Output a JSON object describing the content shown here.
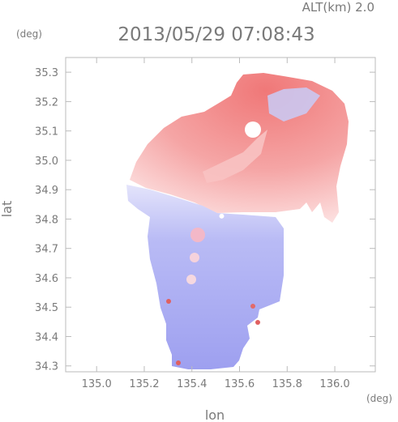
{
  "chart_data": {
    "type": "heatmap",
    "title": "2013/05/29 07:08:43",
    "subtitle": "ALT(km) 2.0",
    "xlabel": "lon",
    "ylabel": "lat",
    "xunit": "(deg)",
    "yunit": "(deg)",
    "xlim": [
      134.87,
      136.17
    ],
    "ylim": [
      34.28,
      35.35
    ],
    "xticks": [
      135.0,
      135.2,
      135.4,
      135.6,
      135.8,
      136.0
    ],
    "yticks": [
      34.3,
      34.4,
      34.5,
      34.6,
      34.7,
      34.8,
      34.9,
      35.0,
      35.1,
      35.2,
      35.3
    ],
    "xtick_labels": [
      "135.0",
      "135.2",
      "135.4",
      "135.6",
      "135.8",
      "136.0"
    ],
    "ytick_labels": [
      "34.3",
      "34.4",
      "34.5",
      "34.6",
      "34.7",
      "34.8",
      "34.9",
      "35.0",
      "35.1",
      "35.2",
      "35.3"
    ],
    "radar_center": [
      135.525,
      34.81
    ],
    "colors": {
      "positive": "#f07070",
      "negative": "#9a9cf0",
      "neutral": "#ffffff",
      "axis": "#bbbbbb",
      "text": "#7a7a7a"
    }
  }
}
